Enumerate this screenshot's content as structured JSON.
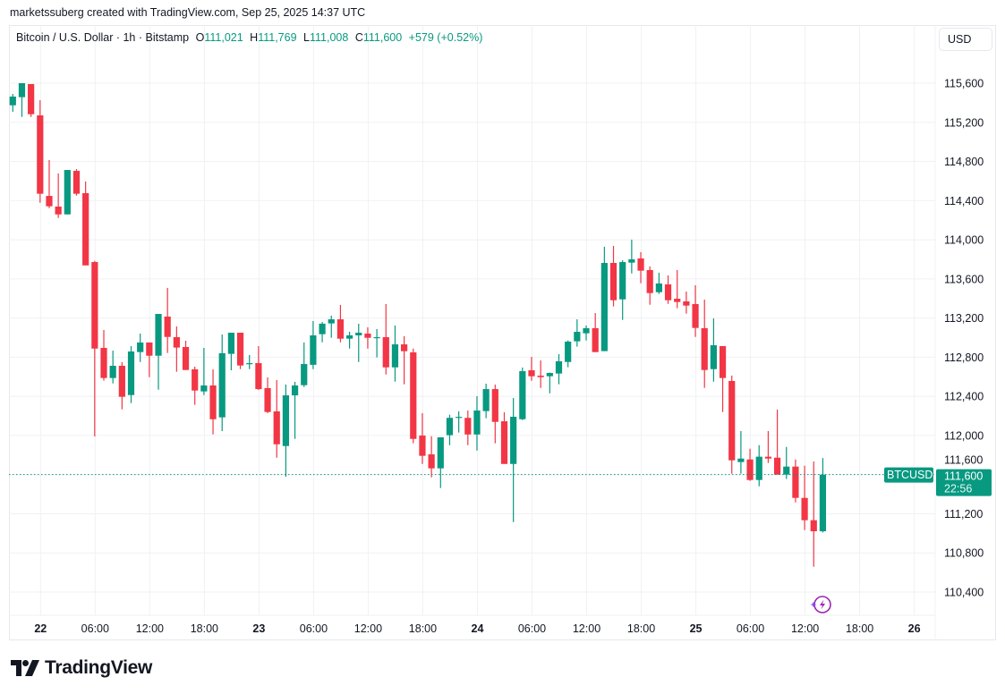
{
  "credit": "marketssuberg created with TradingView.com, Sep 25, 2025 14:37 UTC",
  "legend": {
    "symbol_title": "Bitcoin / U.S. Dollar · 1h · Bitstamp",
    "open_label": "O",
    "open": "111,021",
    "high_label": "H",
    "high": "111,769",
    "low_label": "L",
    "low": "111,008",
    "close_label": "C",
    "close": "111,600",
    "change": "+579 (+0.52%)"
  },
  "currency_button": "USD",
  "price_tag": {
    "symbol": "BTCUSD",
    "price": "111,600",
    "countdown": "22:56"
  },
  "brand": "TradingView",
  "colors": {
    "up": "#089981",
    "down": "#f23645",
    "grid": "#f0f1f4",
    "signal_icon": "#9c27b0"
  },
  "icons": {
    "signal": "lightning-circle-icon",
    "logo": "tradingview-logo-icon"
  },
  "chart_data": {
    "type": "candlestick",
    "title": "Bitcoin / U.S. Dollar · 1h · Bitstamp",
    "interval": "1h",
    "ylim": [
      110200,
      116200
    ],
    "grid": true,
    "y_ticks": [
      "115,600",
      "115,200",
      "114,800",
      "114,400",
      "114,000",
      "113,600",
      "113,200",
      "112,800",
      "112,400",
      "112,000",
      "111,600",
      "111,200",
      "110,800",
      "110,400"
    ],
    "x_ticks": [
      {
        "label": "22",
        "day": true
      },
      {
        "label": "06:00"
      },
      {
        "label": "12:00"
      },
      {
        "label": "18:00"
      },
      {
        "label": "23",
        "day": true
      },
      {
        "label": "06:00"
      },
      {
        "label": "12:00"
      },
      {
        "label": "18:00"
      },
      {
        "label": "24",
        "day": true
      },
      {
        "label": "06:00"
      },
      {
        "label": "12:00"
      },
      {
        "label": "18:00"
      },
      {
        "label": "25",
        "day": true
      },
      {
        "label": "06:00"
      },
      {
        "label": "12:00"
      },
      {
        "label": "18:00"
      },
      {
        "label": "26",
        "day": true
      }
    ],
    "last_price": 111600,
    "columns": [
      "time",
      "open",
      "high",
      "low",
      "close"
    ],
    "candles": [
      [
        "2025-09-21 21:00",
        115374,
        115490,
        115308,
        115463
      ],
      [
        "2025-09-21 22:00",
        115457,
        115600,
        115255,
        115600
      ],
      [
        "2025-09-21 23:00",
        115591,
        115591,
        115255,
        115283
      ],
      [
        "2025-09-22 00:00",
        115271,
        115426,
        114378,
        114470
      ],
      [
        "2025-09-22 01:00",
        114448,
        114814,
        114323,
        114342
      ],
      [
        "2025-09-22 02:00",
        114339,
        114677,
        114223,
        114259
      ],
      [
        "2025-09-22 03:00",
        114259,
        114713,
        114259,
        114713
      ],
      [
        "2025-09-22 04:00",
        114704,
        114722,
        114451,
        114470
      ],
      [
        "2025-09-22 05:00",
        114476,
        114595,
        113738,
        113738
      ],
      [
        "2025-09-22 06:00",
        113772,
        113784,
        111990,
        112888
      ],
      [
        "2025-09-22 07:00",
        112895,
        113078,
        112560,
        112587
      ],
      [
        "2025-09-22 08:00",
        112587,
        112867,
        112532,
        112712
      ],
      [
        "2025-09-22 09:00",
        112712,
        112749,
        112267,
        112395
      ],
      [
        "2025-09-22 10:00",
        112413,
        112913,
        112331,
        112858
      ],
      [
        "2025-09-22 11:00",
        112852,
        113041,
        112751,
        112950
      ],
      [
        "2025-09-22 12:00",
        112950,
        112950,
        112596,
        112815
      ],
      [
        "2025-09-22 13:00",
        112815,
        113242,
        112468,
        113242
      ],
      [
        "2025-09-22 14:00",
        113215,
        113508,
        112843,
        113007
      ],
      [
        "2025-09-22 15:00",
        113005,
        113114,
        112651,
        112898
      ],
      [
        "2025-09-22 16:00",
        112904,
        112968,
        112669,
        112669
      ],
      [
        "2025-09-22 17:00",
        112676,
        112703,
        112313,
        112459
      ],
      [
        "2025-09-22 18:00",
        112450,
        112895,
        112413,
        112511
      ],
      [
        "2025-09-22 19:00",
        112511,
        112676,
        112011,
        112166
      ],
      [
        "2025-09-22 20:00",
        112185,
        113032,
        112045,
        112840
      ],
      [
        "2025-09-22 21:00",
        112834,
        113050,
        112666,
        113050
      ],
      [
        "2025-09-22 22:00",
        113050,
        113050,
        112678,
        112715
      ],
      [
        "2025-09-22 23:00",
        112730,
        112822,
        112678,
        112739
      ],
      [
        "2025-09-23 00:00",
        112739,
        112913,
        112465,
        112474
      ],
      [
        "2025-09-23 01:00",
        112484,
        112593,
        112228,
        112240
      ],
      [
        "2025-09-23 02:00",
        112246,
        112566,
        111773,
        111910
      ],
      [
        "2025-09-23 03:00",
        111892,
        112520,
        111579,
        112410
      ],
      [
        "2025-09-23 04:00",
        112410,
        112548,
        111965,
        112511
      ],
      [
        "2025-09-23 05:00",
        112514,
        112950,
        112495,
        112730
      ],
      [
        "2025-09-23 06:00",
        112722,
        113169,
        112678,
        113023
      ],
      [
        "2025-09-23 07:00",
        113035,
        113160,
        112952,
        113142
      ],
      [
        "2025-09-23 08:00",
        113145,
        113224,
        112998,
        113187
      ],
      [
        "2025-09-23 09:00",
        113187,
        113334,
        112952,
        112989
      ],
      [
        "2025-09-23 10:00",
        112989,
        113059,
        112888,
        113023
      ],
      [
        "2025-09-23 11:00",
        113023,
        113142,
        112751,
        113050
      ],
      [
        "2025-09-23 12:00",
        113041,
        113105,
        112888,
        112998
      ],
      [
        "2025-09-23 13:00",
        113005,
        113087,
        112797,
        113005
      ],
      [
        "2025-09-23 14:00",
        113005,
        113343,
        112623,
        112696
      ],
      [
        "2025-09-23 15:00",
        112696,
        113123,
        112550,
        112931
      ],
      [
        "2025-09-23 16:00",
        112931,
        113014,
        112523,
        112861
      ],
      [
        "2025-09-23 17:00",
        112849,
        112888,
        111920,
        111965
      ],
      [
        "2025-09-23 18:00",
        111999,
        112228,
        111709,
        111792
      ],
      [
        "2025-09-23 19:00",
        111807,
        111993,
        111572,
        111664
      ],
      [
        "2025-09-23 20:00",
        111664,
        111981,
        111463,
        111981
      ],
      [
        "2025-09-23 21:00",
        112003,
        112212,
        111901,
        112180
      ],
      [
        "2025-09-23 22:00",
        112180,
        112246,
        112030,
        112190
      ],
      [
        "2025-09-23 23:00",
        112180,
        112255,
        111901,
        112010
      ],
      [
        "2025-09-24 00:00",
        112010,
        112401,
        111846,
        112255
      ],
      [
        "2025-09-24 01:00",
        112249,
        112529,
        112176,
        112474
      ],
      [
        "2025-09-24 02:00",
        112474,
        112520,
        111920,
        112139
      ],
      [
        "2025-09-24 03:00",
        112145,
        112237,
        111709,
        111709
      ],
      [
        "2025-09-24 04:00",
        111709,
        112383,
        111115,
        112191
      ],
      [
        "2025-09-24 05:00",
        112166,
        112694,
        112157,
        112657
      ],
      [
        "2025-09-24 06:00",
        112666,
        112803,
        112559,
        112605
      ],
      [
        "2025-09-24 07:00",
        112611,
        112767,
        112486,
        112596
      ],
      [
        "2025-09-24 08:00",
        112605,
        112642,
        112431,
        112639
      ],
      [
        "2025-09-24 09:00",
        112633,
        112831,
        112523,
        112758
      ],
      [
        "2025-09-24 10:00",
        112751,
        112971,
        112697,
        112959
      ],
      [
        "2025-09-24 11:00",
        112962,
        113187,
        112907,
        113059
      ],
      [
        "2025-09-24 12:00",
        113044,
        113123,
        112971,
        113096
      ],
      [
        "2025-09-24 13:00",
        113096,
        113251,
        112852,
        112852
      ],
      [
        "2025-09-24 14:00",
        112862,
        113928,
        112862,
        113763
      ],
      [
        "2025-09-24 15:00",
        113763,
        113937,
        113318,
        113382
      ],
      [
        "2025-09-24 16:00",
        113391,
        113790,
        113181,
        113772
      ],
      [
        "2025-09-24 17:00",
        113766,
        114001,
        113656,
        113800
      ],
      [
        "2025-09-24 18:00",
        113809,
        113873,
        113556,
        113684
      ],
      [
        "2025-09-24 19:00",
        113690,
        113727,
        113336,
        113455
      ],
      [
        "2025-09-24 20:00",
        113464,
        113663,
        113446,
        113553
      ],
      [
        "2025-09-24 21:00",
        113544,
        113635,
        113345,
        113382
      ],
      [
        "2025-09-24 22:00",
        113397,
        113690,
        113300,
        113364
      ],
      [
        "2025-09-24 23:00",
        113370,
        113471,
        113245,
        113327
      ],
      [
        "2025-09-25 00:00",
        113343,
        113535,
        113007,
        113099
      ],
      [
        "2025-09-25 01:00",
        113096,
        113388,
        112486,
        112669
      ],
      [
        "2025-09-25 02:00",
        112678,
        113196,
        112550,
        112922
      ],
      [
        "2025-09-25 03:00",
        112913,
        112913,
        112239,
        112587
      ],
      [
        "2025-09-25 04:00",
        112557,
        112612,
        111609,
        111746
      ],
      [
        "2025-09-25 05:00",
        111728,
        112045,
        111609,
        111764
      ],
      [
        "2025-09-25 06:00",
        111755,
        111865,
        111536,
        111545
      ],
      [
        "2025-09-25 07:00",
        111545,
        111901,
        111481,
        111783
      ],
      [
        "2025-09-25 08:00",
        111783,
        112045,
        111719,
        111764
      ],
      [
        "2025-09-25 09:00",
        111773,
        112264,
        111600,
        111600
      ],
      [
        "2025-09-25 10:00",
        111600,
        111883,
        111555,
        111682
      ],
      [
        "2025-09-25 11:00",
        111682,
        111755,
        111316,
        111362
      ],
      [
        "2025-09-25 12:00",
        111362,
        111691,
        111033,
        111134
      ],
      [
        "2025-09-25 13:00",
        111134,
        111734,
        110659,
        111021
      ],
      [
        "2025-09-25 14:00",
        111021,
        111769,
        111008,
        111600
      ]
    ]
  }
}
